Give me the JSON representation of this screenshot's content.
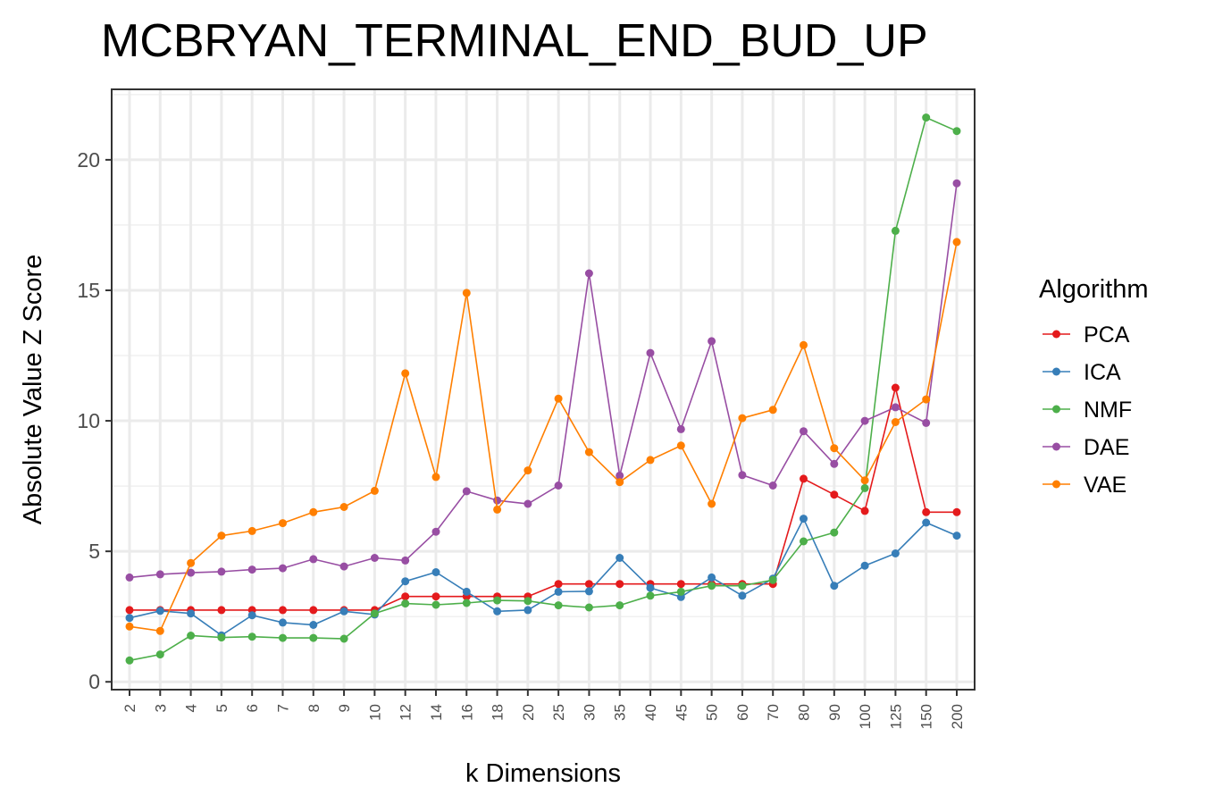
{
  "chart_data": {
    "type": "line",
    "title": "MCBRYAN_TERMINAL_END_BUD_UP",
    "xlabel": "k Dimensions",
    "ylabel": "Absolute Value Z Score",
    "categories": [
      "2",
      "3",
      "4",
      "5",
      "6",
      "7",
      "8",
      "9",
      "10",
      "12",
      "14",
      "16",
      "18",
      "20",
      "25",
      "30",
      "35",
      "40",
      "45",
      "50",
      "60",
      "70",
      "80",
      "90",
      "100",
      "125",
      "150",
      "200"
    ],
    "ylim": [
      -0.3,
      22.7
    ],
    "yticks": [
      0,
      5,
      10,
      15,
      20
    ],
    "grid": true,
    "legend": {
      "title": "Algorithm",
      "placement": "right"
    },
    "series": [
      {
        "name": "PCA",
        "color": "#e41a1c",
        "values": [
          2.75,
          2.75,
          2.75,
          2.75,
          2.75,
          2.75,
          2.75,
          2.75,
          2.75,
          3.27,
          3.27,
          3.27,
          3.27,
          3.27,
          3.75,
          3.75,
          3.75,
          3.75,
          3.75,
          3.75,
          3.75,
          3.75,
          7.78,
          7.17,
          6.55,
          11.27,
          6.5,
          6.5
        ]
      },
      {
        "name": "ICA",
        "color": "#377eb8",
        "values": [
          2.45,
          2.72,
          2.62,
          1.78,
          2.55,
          2.27,
          2.18,
          2.7,
          2.58,
          3.85,
          4.2,
          3.45,
          2.7,
          2.75,
          3.45,
          3.47,
          4.75,
          3.6,
          3.25,
          4.0,
          3.3,
          3.95,
          6.25,
          3.68,
          4.45,
          4.92,
          6.1,
          5.6
        ]
      },
      {
        "name": "NMF",
        "color": "#4daf4a",
        "values": [
          0.82,
          1.05,
          1.77,
          1.7,
          1.73,
          1.68,
          1.68,
          1.65,
          2.62,
          3.0,
          2.95,
          3.02,
          3.12,
          3.1,
          2.93,
          2.85,
          2.93,
          3.3,
          3.45,
          3.68,
          3.68,
          3.9,
          5.38,
          5.72,
          7.42,
          17.28,
          21.62,
          21.1
        ]
      },
      {
        "name": "DAE",
        "color": "#984ea3",
        "values": [
          4.0,
          4.12,
          4.18,
          4.22,
          4.3,
          4.35,
          4.7,
          4.42,
          4.75,
          4.65,
          5.75,
          7.3,
          6.95,
          6.82,
          7.52,
          15.65,
          7.9,
          12.6,
          9.68,
          13.05,
          7.92,
          7.52,
          9.6,
          8.35,
          10.0,
          10.52,
          9.92,
          19.1
        ]
      },
      {
        "name": "VAE",
        "color": "#ff7f00",
        "values": [
          2.12,
          1.95,
          4.55,
          5.6,
          5.78,
          6.08,
          6.5,
          6.7,
          7.32,
          11.82,
          7.85,
          14.9,
          6.6,
          8.1,
          10.85,
          8.8,
          7.65,
          8.5,
          9.05,
          6.82,
          10.1,
          10.42,
          12.9,
          8.95,
          7.72,
          9.95,
          10.82,
          16.85
        ]
      }
    ]
  }
}
